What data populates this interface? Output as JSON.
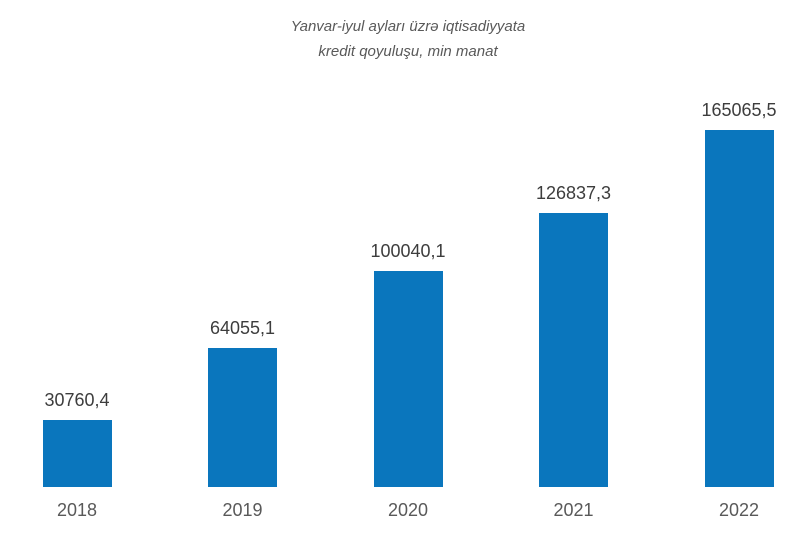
{
  "chart_data": {
    "type": "bar",
    "title": "Yanvar-iyul ayları üzrə iqtisadiyyata kredit qoyuluşu, min manat",
    "title_lines": [
      "Yanvar-iyul ayları üzrə iqtisadiyyata",
      "kredit qoyuluşu, min manat"
    ],
    "categories": [
      "2018",
      "2019",
      "2020",
      "2021",
      "2022"
    ],
    "values": [
      30760.4,
      64055.1,
      100040.1,
      126837.3,
      165065.5
    ],
    "value_labels": [
      "30760,4",
      "64055,1",
      "100040,1",
      "126837,3",
      "165065,5"
    ],
    "xlabel": "",
    "ylabel": "",
    "ylim": [
      0,
      165065.5
    ],
    "grid": false,
    "legend": false,
    "bar_color": "#0a76bd",
    "value_label_color": "#3d3d3d",
    "axis_label_color": "#595959",
    "title_color": "#595959",
    "background_color": "#ffffff"
  }
}
